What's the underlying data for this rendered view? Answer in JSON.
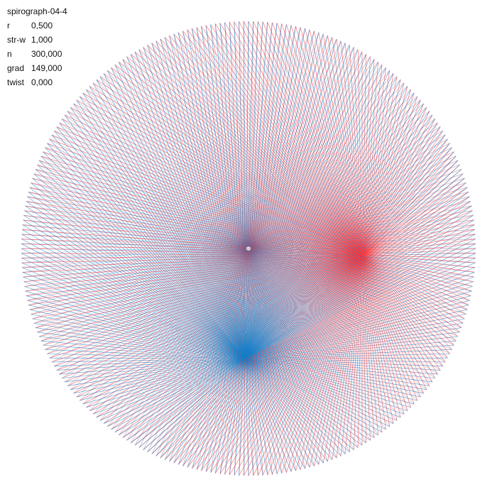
{
  "title": "spirograph-04-4",
  "params": [
    {
      "label": "r",
      "value": "0,500"
    },
    {
      "label": "str-w",
      "value": "1,000"
    },
    {
      "label": "n",
      "value": "300,000"
    },
    {
      "label": "grad",
      "value": "149,000"
    },
    {
      "label": "twist",
      "value": "0,000"
    }
  ],
  "colors": {
    "background": "#ffffff",
    "stroke_a": "#ff3b3f",
    "stroke_b": "#1a7fc8",
    "text": "#111111"
  }
}
